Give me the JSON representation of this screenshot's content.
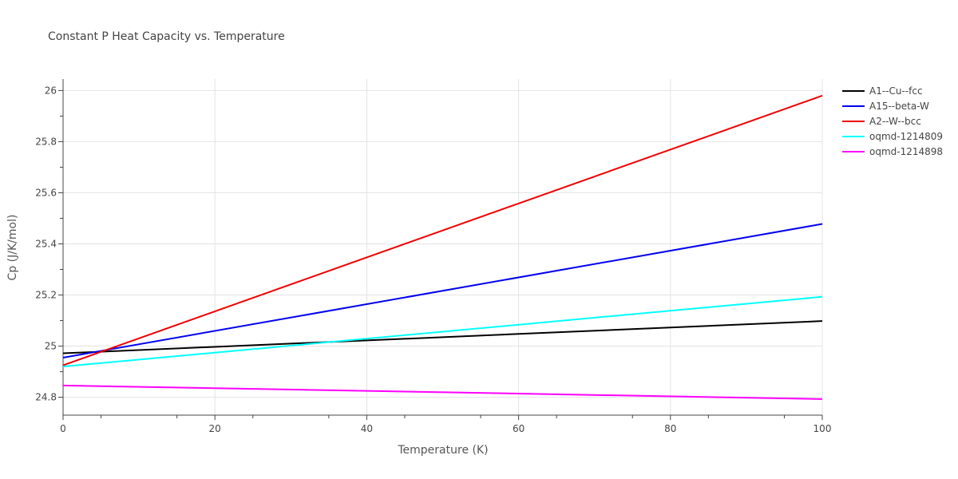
{
  "chart_data": {
    "type": "line",
    "title": "Constant P Heat Capacity vs. Temperature",
    "xlabel": "Temperature (K)",
    "ylabel": "Cp (J/K/mol)",
    "xlim": [
      0,
      100
    ],
    "ylim": [
      24.73,
      26.045
    ],
    "x_ticks": [
      0,
      20,
      40,
      60,
      80,
      100
    ],
    "x_tick_labels": [
      "0",
      "20",
      "40",
      "60",
      "80",
      "100"
    ],
    "y_ticks": [
      24.8,
      25.0,
      25.2,
      25.4,
      25.6,
      25.8,
      26.0
    ],
    "y_tick_labels": [
      "24.8",
      "25",
      "25.2",
      "25.4",
      "25.6",
      "25.8",
      "26"
    ],
    "grid": true,
    "legend_position": "right",
    "series": [
      {
        "name": "A1--Cu--fcc",
        "color": "#000000",
        "x": [
          0,
          100
        ],
        "y": [
          24.972,
          25.098
        ]
      },
      {
        "name": "A15--beta-W",
        "color": "#0000ee",
        "x": [
          0,
          100
        ],
        "y": [
          24.955,
          25.478
        ]
      },
      {
        "name": "A2--W--bcc",
        "color": "#ee0000",
        "x": [
          0,
          100
        ],
        "y": [
          24.925,
          25.98
        ]
      },
      {
        "name": "oqmd-1214809",
        "color": "#00ffff",
        "x": [
          0,
          100
        ],
        "y": [
          24.92,
          25.193
        ]
      },
      {
        "name": "oqmd-1214898",
        "color": "#ff00ff",
        "x": [
          0,
          100
        ],
        "y": [
          24.846,
          24.793
        ]
      }
    ]
  }
}
